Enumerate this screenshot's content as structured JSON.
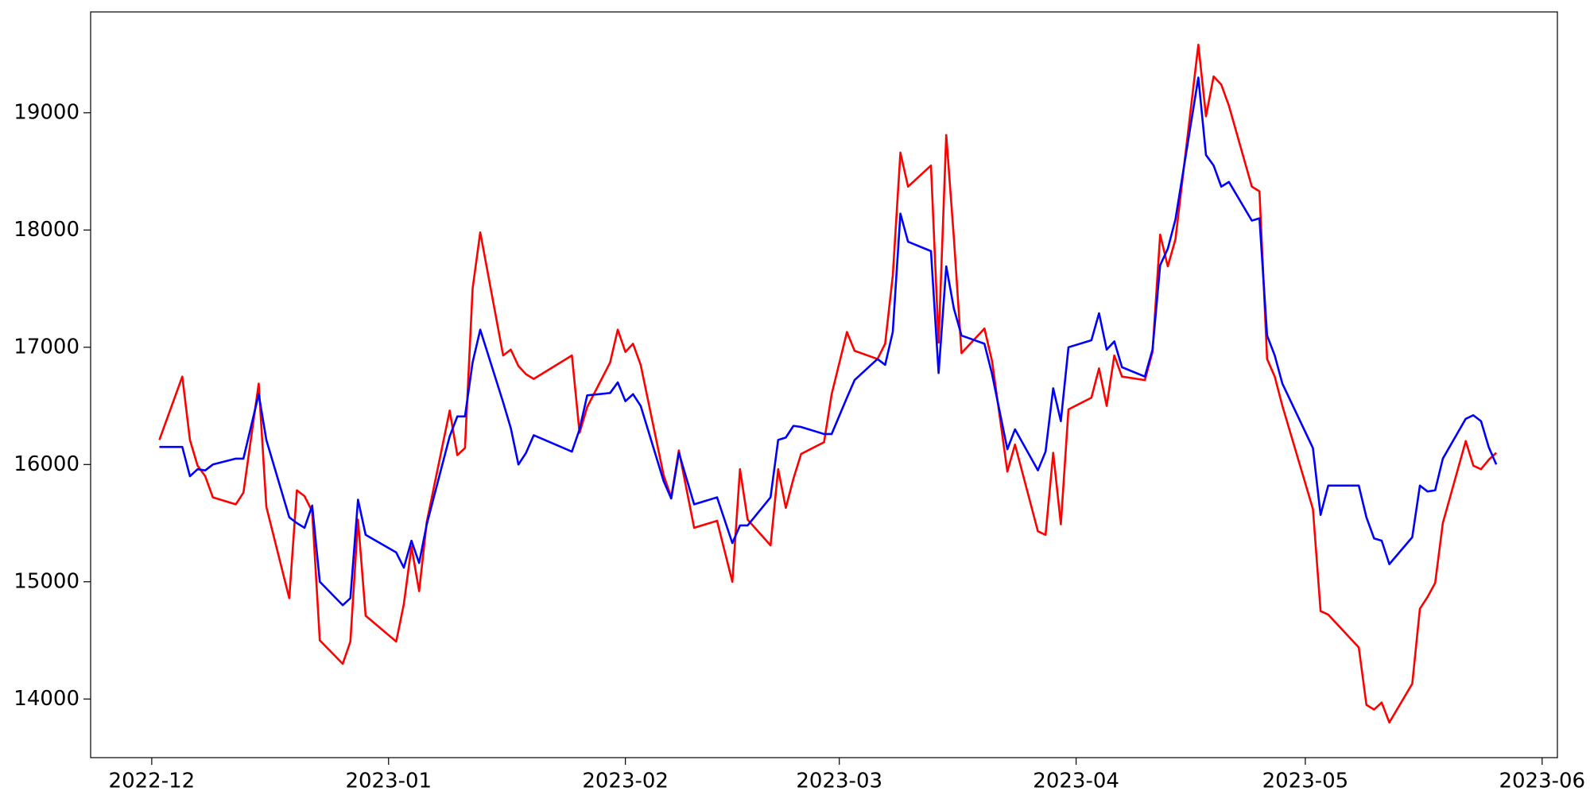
{
  "chart_data": {
    "type": "line",
    "x": [
      "2022-12-02",
      "2022-12-05",
      "2022-12-06",
      "2022-12-07",
      "2022-12-08",
      "2022-12-09",
      "2022-12-12",
      "2022-12-13",
      "2022-12-15",
      "2022-12-16",
      "2022-12-19",
      "2022-12-20",
      "2022-12-21",
      "2022-12-22",
      "2022-12-23",
      "2022-12-26",
      "2022-12-27",
      "2022-12-28",
      "2022-12-29",
      "2023-01-02",
      "2023-01-03",
      "2023-01-04",
      "2023-01-05",
      "2023-01-06",
      "2023-01-09",
      "2023-01-10",
      "2023-01-11",
      "2023-01-12",
      "2023-01-13",
      "2023-01-16",
      "2023-01-17",
      "2023-01-18",
      "2023-01-19",
      "2023-01-20",
      "2023-01-25",
      "2023-01-26",
      "2023-01-27",
      "2023-01-30",
      "2023-01-31",
      "2023-02-01",
      "2023-02-02",
      "2023-02-03",
      "2023-02-06",
      "2023-02-07",
      "2023-02-08",
      "2023-02-10",
      "2023-02-13",
      "2023-02-15",
      "2023-02-16",
      "2023-02-17",
      "2023-02-20",
      "2023-02-21",
      "2023-02-22",
      "2023-02-23",
      "2023-02-24",
      "2023-02-27",
      "2023-02-28",
      "2023-03-02",
      "2023-03-03",
      "2023-03-06",
      "2023-03-07",
      "2023-03-08",
      "2023-03-09",
      "2023-03-10",
      "2023-03-13",
      "2023-03-14",
      "2023-03-15",
      "2023-03-16",
      "2023-03-17",
      "2023-03-20",
      "2023-03-21",
      "2023-03-23",
      "2023-03-24",
      "2023-03-27",
      "2023-03-28",
      "2023-03-29",
      "2023-03-30",
      "2023-03-31",
      "2023-04-03",
      "2023-04-04",
      "2023-04-05",
      "2023-04-06",
      "2023-04-07",
      "2023-04-10",
      "2023-04-11",
      "2023-04-12",
      "2023-04-13",
      "2023-04-14",
      "2023-04-17",
      "2023-04-18",
      "2023-04-19",
      "2023-04-20",
      "2023-04-21",
      "2023-04-24",
      "2023-04-25",
      "2023-04-26",
      "2023-04-27",
      "2023-04-28",
      "2023-05-02",
      "2023-05-03",
      "2023-05-04",
      "2023-05-08",
      "2023-05-09",
      "2023-05-10",
      "2023-05-11",
      "2023-05-12",
      "2023-05-15",
      "2023-05-16",
      "2023-05-17",
      "2023-05-18",
      "2023-05-19",
      "2023-05-22",
      "2023-05-23",
      "2023-05-24",
      "2023-05-25",
      "2023-05-26"
    ],
    "series": [
      {
        "color": "#ff0000",
        "values": [
          16210,
          16750,
          16210,
          15990,
          15900,
          15720,
          15660,
          15760,
          16690,
          15640,
          14860,
          15780,
          15730,
          15600,
          14500,
          14300,
          14490,
          15530,
          14710,
          14490,
          14810,
          15300,
          14920,
          15510,
          16460,
          16080,
          16140,
          17500,
          17980,
          16930,
          16980,
          16840,
          16770,
          16730,
          16930,
          16270,
          16490,
          16870,
          17150,
          16960,
          17030,
          16850,
          15910,
          15720,
          16120,
          15460,
          15520,
          15000,
          15960,
          15530,
          15310,
          15960,
          15630,
          15880,
          16090,
          16190,
          16600,
          17130,
          16970,
          16900,
          17030,
          17610,
          18660,
          18370,
          18550,
          17040,
          18810,
          17930,
          16950,
          17160,
          16880,
          15940,
          16170,
          15430,
          15400,
          16100,
          15490,
          16470,
          16570,
          16820,
          16500,
          16930,
          16750,
          16720,
          16960,
          17960,
          17690,
          17920,
          19580,
          18970,
          19310,
          19240,
          19060,
          18370,
          18330,
          16900,
          16750,
          16500,
          15620,
          14750,
          14720,
          14440,
          13950,
          13910,
          13970,
          13800,
          14130,
          14770,
          14870,
          14990,
          15500,
          16200,
          15990,
          15960,
          16040,
          16100
        ]
      },
      {
        "color": "#0000ff",
        "values": [
          16150,
          16150,
          15900,
          15960,
          15950,
          16000,
          16050,
          16050,
          16600,
          16210,
          15550,
          15500,
          15460,
          15650,
          15000,
          14800,
          14860,
          15700,
          15400,
          15250,
          15120,
          15350,
          15160,
          15490,
          16240,
          16410,
          16410,
          16870,
          17150,
          16530,
          16310,
          16000,
          16100,
          16250,
          16110,
          16300,
          16590,
          16610,
          16700,
          16540,
          16600,
          16500,
          15860,
          15710,
          16100,
          15660,
          15720,
          15330,
          15480,
          15480,
          15720,
          16210,
          16230,
          16330,
          16320,
          16260,
          16260,
          16570,
          16720,
          16900,
          16850,
          17130,
          18140,
          17900,
          17820,
          16780,
          17690,
          17330,
          17100,
          17030,
          16770,
          16130,
          16300,
          15950,
          16110,
          16650,
          16370,
          17000,
          17060,
          17290,
          16980,
          17050,
          16830,
          16750,
          16980,
          17700,
          17840,
          18090,
          19300,
          18640,
          18550,
          18370,
          18410,
          18080,
          18100,
          17100,
          16930,
          16690,
          16140,
          15570,
          15820,
          15820,
          15550,
          15370,
          15350,
          15150,
          15380,
          15820,
          15770,
          15780,
          16050,
          16390,
          16420,
          16370,
          16150,
          16000
        ]
      }
    ],
    "xlim": [
      "2022-11-23",
      "2023-06-03"
    ],
    "xticks": [
      {
        "value": "2022-12-01",
        "label": "2022-12"
      },
      {
        "value": "2023-01-01",
        "label": "2023-01"
      },
      {
        "value": "2023-02-01",
        "label": "2023-02"
      },
      {
        "value": "2023-03-01",
        "label": "2023-03"
      },
      {
        "value": "2023-04-01",
        "label": "2023-04"
      },
      {
        "value": "2023-05-01",
        "label": "2023-05"
      },
      {
        "value": "2023-06-01",
        "label": "2023-06"
      }
    ],
    "ylim": [
      13500,
      19860
    ],
    "yticks": [
      14000,
      15000,
      16000,
      17000,
      18000,
      19000
    ]
  }
}
